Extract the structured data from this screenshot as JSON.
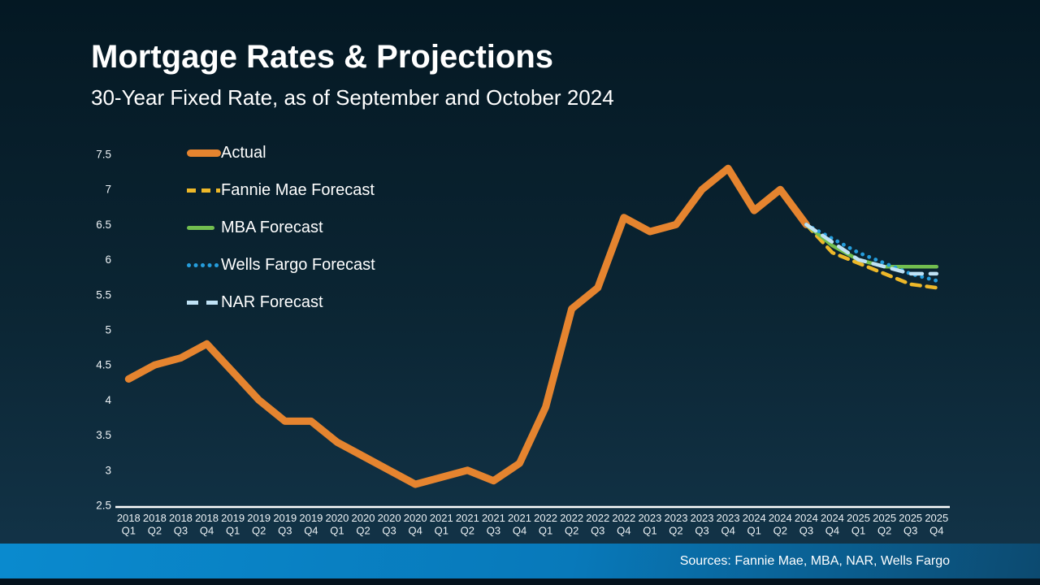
{
  "header": {
    "title": "Mortgage Rates & Projections",
    "subtitle": "30-Year Fixed Rate, as of September and October 2024"
  },
  "footer": {
    "sources": "Sources: Fannie Mae, MBA, NAR, Wells Fargo"
  },
  "colors": {
    "background_top": "#041823",
    "background_bottom": "#123347",
    "footer_bar_left": "#0a8ace",
    "footer_bar_right": "#0c4a70",
    "axis": "#ffffff",
    "tick_text": "#eef3f6",
    "actual": "#E5842F",
    "fannie_mae": "#EDB829",
    "mba": "#72BE4F",
    "wells_fargo": "#259DDC",
    "nar": "#BFE2F5"
  },
  "chart_data": {
    "type": "line",
    "title": "Mortgage Rates & Projections",
    "subtitle": "30-Year Fixed Rate, as of September and October 2024",
    "xlabel": "",
    "ylabel": "",
    "ylim": [
      2.5,
      7.5
    ],
    "ytick_step": 0.5,
    "grid": false,
    "legend_position": "top-left",
    "categories": [
      "2018 Q1",
      "2018 Q2",
      "2018 Q3",
      "2018 Q4",
      "2019 Q1",
      "2019 Q2",
      "2019 Q3",
      "2019 Q4",
      "2020 Q1",
      "2020 Q2",
      "2020 Q3",
      "2020 Q4",
      "2021 Q1",
      "2021 Q2",
      "2021 Q3",
      "2021 Q4",
      "2022 Q1",
      "2022 Q2",
      "2022 Q3",
      "2022 Q4",
      "2023 Q1",
      "2023 Q2",
      "2023 Q3",
      "2023 Q4",
      "2024 Q1",
      "2024 Q2",
      "2024 Q3",
      "2024 Q4",
      "2025 Q1",
      "2025 Q2",
      "2025 Q3",
      "2025 Q4"
    ],
    "series": [
      {
        "name": "Actual",
        "color": "#E5842F",
        "line_style": "solid-thick",
        "start_index": 0,
        "values": [
          4.3,
          4.5,
          4.6,
          4.8,
          4.4,
          4.0,
          3.7,
          3.7,
          3.4,
          3.2,
          3.0,
          2.8,
          2.9,
          3.0,
          2.85,
          3.1,
          3.9,
          5.3,
          5.6,
          6.6,
          6.4,
          6.5,
          7.0,
          7.3,
          6.7,
          7.0,
          6.5
        ]
      },
      {
        "name": "Fannie Mae Forecast",
        "color": "#EDB829",
        "line_style": "dashed",
        "start_index": 26,
        "values": [
          6.5,
          6.1,
          5.95,
          5.8,
          5.65,
          5.6
        ]
      },
      {
        "name": "MBA Forecast",
        "color": "#72BE4F",
        "line_style": "solid",
        "start_index": 26,
        "values": [
          6.5,
          6.2,
          6.0,
          5.9,
          5.9,
          5.9
        ]
      },
      {
        "name": "Wells Fargo Forecast",
        "color": "#259DDC",
        "line_style": "dotted",
        "start_index": 26,
        "values": [
          6.5,
          6.3,
          6.1,
          5.95,
          5.8,
          5.7
        ]
      },
      {
        "name": "NAR Forecast",
        "color": "#BFE2F5",
        "line_style": "long-dash",
        "start_index": 26,
        "values": [
          6.5,
          6.25,
          6.0,
          5.9,
          5.8,
          5.8
        ]
      }
    ]
  }
}
